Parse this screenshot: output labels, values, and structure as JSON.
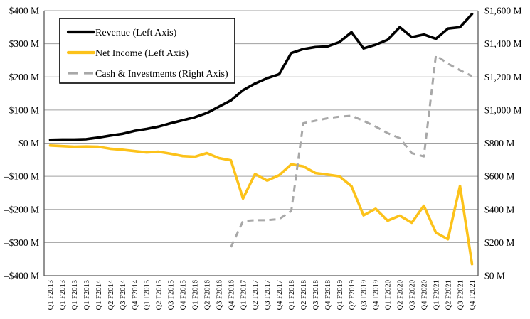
{
  "chart_data": {
    "type": "line",
    "title": "",
    "grid": true,
    "legend_position": "top-left",
    "categories": [
      "Q1 F2013",
      "Q1 F2013",
      "Q1 F2013",
      "Q1 F2013",
      "Q1 F2014",
      "Q2 F2014",
      "Q3 F2014",
      "Q4 F2014",
      "Q1 F2015",
      "Q2 F2015",
      "Q3 F2015",
      "Q4 F2015",
      "Q1 F2016",
      "Q2 F2016",
      "Q3 F2016",
      "Q4 F2016",
      "Q1 F2017",
      "Q2 F2017",
      "Q3 F2017",
      "Q4 F2017",
      "Q1 F2018",
      "Q2 F2018",
      "Q3 F2018",
      "Q4 F2018",
      "Q1 F2019",
      "Q2 F2019",
      "Q3 F2019",
      "Q4 F2019",
      "Q1 F2020",
      "Q2 F2020",
      "Q3 F2020",
      "Q4 F2020",
      "Q1 F2021",
      "Q2 F2021",
      "Q3 F2021",
      "Q4 F2021"
    ],
    "series": [
      {
        "name": "Revenue (Left Axis)",
        "axis": "left",
        "color": "#000000",
        "style": "solid",
        "values": [
          10,
          11,
          11,
          12,
          17,
          23,
          28,
          37,
          43,
          50,
          60,
          69,
          78,
          91,
          110,
          129,
          160,
          180,
          196,
          208,
          272,
          284,
          290,
          292,
          305,
          335,
          286,
          297,
          312,
          350,
          320,
          328,
          315,
          346,
          350,
          390
        ]
      },
      {
        "name": "Net Income (Left Axis)",
        "axis": "left",
        "color": "#FCC21A",
        "style": "solid",
        "values": [
          -7,
          -9,
          -11,
          -10,
          -11,
          -17,
          -20,
          -24,
          -28,
          -26,
          -32,
          -39,
          -41,
          -30,
          -45,
          -52,
          -167,
          -93,
          -113,
          -97,
          -64,
          -70,
          -90,
          -95,
          -100,
          -130,
          -218,
          -198,
          -234,
          -219,
          -240,
          -189,
          -270,
          -290,
          -129,
          -365
        ]
      },
      {
        "name": "Cash & Investments (Right Axis)",
        "axis": "right",
        "color": "#A8A8A8",
        "style": "dashed",
        "values": [
          null,
          null,
          null,
          null,
          null,
          null,
          null,
          null,
          null,
          null,
          null,
          null,
          null,
          null,
          null,
          172,
          330,
          335,
          335,
          342,
          390,
          920,
          935,
          950,
          960,
          965,
          935,
          900,
          860,
          830,
          740,
          720,
          1330,
          1280,
          1240,
          1205
        ]
      }
    ],
    "left_axis": {
      "min": -400,
      "max": 400,
      "step": 100,
      "tick_labels": [
        "$400 M",
        "$300 M",
        "$200 M",
        "$100 M",
        "$0 M",
        "–$100 M",
        "–$200 M",
        "–$300 M",
        "–$400 M"
      ]
    },
    "right_axis": {
      "min": 0,
      "max": 1600,
      "step": 200,
      "tick_labels": [
        "$1,600 M",
        "$1,400 M",
        "$1,200 M",
        "$1,000 M",
        "$800 M",
        "$600 M",
        "$400 M",
        "$200 M",
        "$0 M"
      ]
    }
  },
  "colors": {
    "background": "#FFFFFF",
    "gridline": "#A0A0A0",
    "axis_frame": "#595959",
    "legend_border": "#000000",
    "legend_fill": "#FFFFFF",
    "revenue": "#000000",
    "net_income": "#FCC21A",
    "cash": "#A8A8A8"
  }
}
